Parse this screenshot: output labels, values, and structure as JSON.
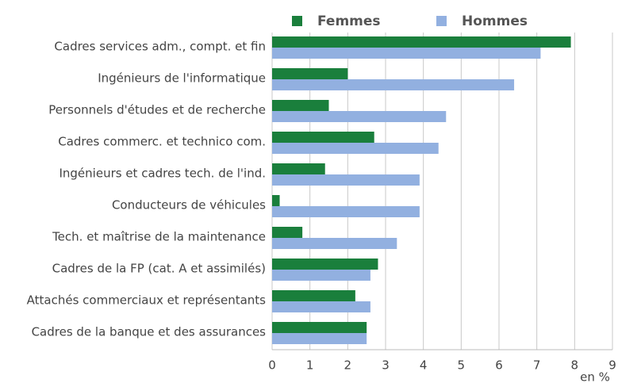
{
  "chart_data": {
    "type": "bar",
    "orientation": "horizontal",
    "categories": [
      "Cadres services adm., compt. et fin",
      "Ingénieurs de l'informatique",
      "Personnels d'études et de recherche",
      "Cadres commerc. et technico com.",
      "Ingénieurs et cadres tech. de l'ind.",
      "Conducteurs de véhicules",
      "Tech. et maîtrise de la maintenance",
      "Cadres de la FP (cat. A et assimilés)",
      "Attachés commerciaux et représentants",
      "Cadres de la banque et des assurances"
    ],
    "series": [
      {
        "name": "Femmes",
        "color": "#1a7f3c",
        "values": [
          7.9,
          2.0,
          1.5,
          2.7,
          1.4,
          0.2,
          0.8,
          2.8,
          2.2,
          2.5
        ]
      },
      {
        "name": "Hommes",
        "color": "#92b0e0",
        "values": [
          7.1,
          6.4,
          4.6,
          4.4,
          3.9,
          3.9,
          3.3,
          2.6,
          2.6,
          2.5
        ]
      }
    ],
    "x_label": "en %",
    "xlim": [
      0,
      9
    ],
    "xticks": [
      0,
      1,
      2,
      3,
      4,
      5,
      6,
      7,
      8,
      9
    ],
    "grid": true,
    "legend": "top"
  }
}
